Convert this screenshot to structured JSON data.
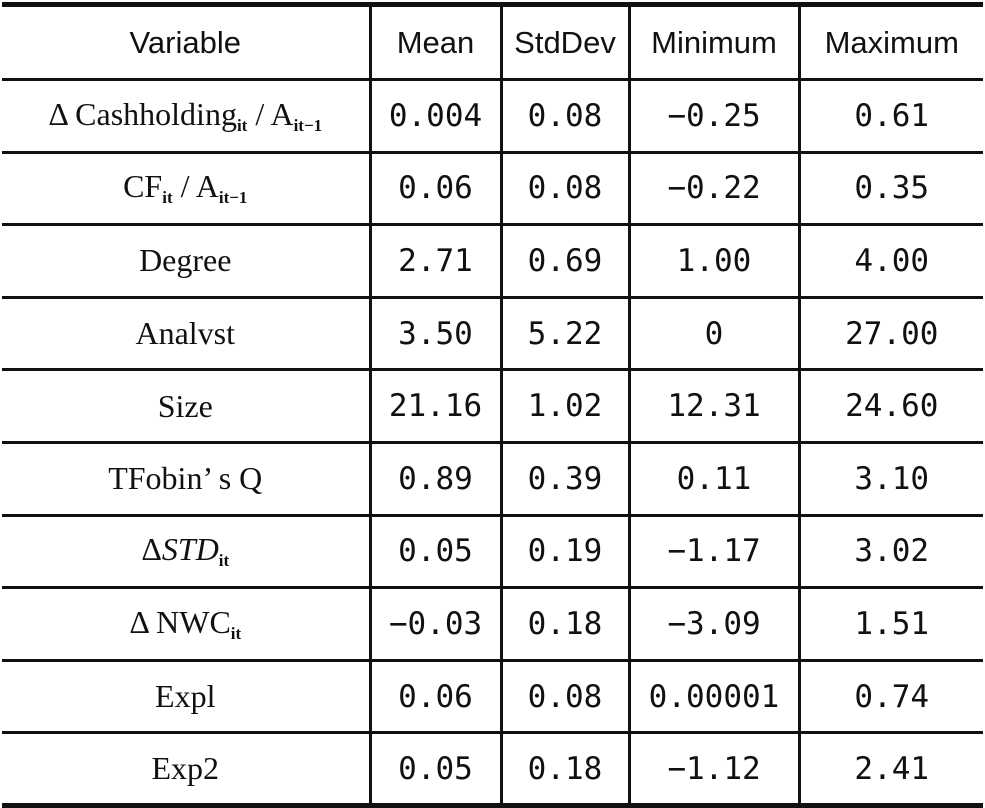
{
  "table": {
    "headers": [
      "Variable",
      "Mean",
      "StdDev",
      "Minimum",
      "Maximum"
    ],
    "rows": [
      {
        "variable": {
          "prefix": "Δ ",
          "base": "Cashholding",
          "sub": "it",
          "sep": " / A",
          "sub2": "it−1"
        },
        "values": [
          "0.004",
          "0.08",
          "−0.25",
          "0.61"
        ]
      },
      {
        "variable": {
          "prefix": "",
          "base": "CF",
          "sub": "it",
          "sep": " / A",
          "sub2": "it−1"
        },
        "values": [
          "0.06",
          "0.08",
          "−0.22",
          "0.35"
        ]
      },
      {
        "variable": {
          "prefix": "",
          "base": "Degree",
          "sub": "",
          "sep": "",
          "sub2": ""
        },
        "values": [
          "2.71",
          "0.69",
          "1.00",
          "4.00"
        ]
      },
      {
        "variable": {
          "prefix": "",
          "base": "Analvst",
          "sub": "",
          "sep": "",
          "sub2": ""
        },
        "values": [
          "3.50",
          "5.22",
          "0",
          "27.00"
        ]
      },
      {
        "variable": {
          "prefix": "",
          "base": "Size",
          "sub": "",
          "sep": "",
          "sub2": ""
        },
        "values": [
          "21.16",
          "1.02",
          "12.31",
          "24.60"
        ]
      },
      {
        "variable": {
          "prefix": "",
          "base": "TFobin’ s Q",
          "sub": "",
          "sep": "",
          "sub2": ""
        },
        "values": [
          "0.89",
          "0.39",
          "0.11",
          "3.10"
        ]
      },
      {
        "variable": {
          "prefix": "Δ",
          "base": "STD",
          "sub": "it",
          "sep": "",
          "sub2": "",
          "italic": true
        },
        "values": [
          "0.05",
          "0.19",
          "−1.17",
          "3.02"
        ]
      },
      {
        "variable": {
          "prefix": "Δ ",
          "base": "NWC",
          "sub": "it",
          "sep": "",
          "sub2": ""
        },
        "values": [
          "−0.03",
          "0.18",
          "−3.09",
          "1.51"
        ]
      },
      {
        "variable": {
          "prefix": "",
          "base": "Expl",
          "sub": "",
          "sep": "",
          "sub2": ""
        },
        "values": [
          "0.06",
          "0.08",
          "0.00001",
          "0.74"
        ]
      },
      {
        "variable": {
          "prefix": "",
          "base": "Exp2",
          "sub": "",
          "sep": "",
          "sub2": ""
        },
        "values": [
          "0.05",
          "0.18",
          "−1.12",
          "2.41"
        ]
      }
    ]
  }
}
